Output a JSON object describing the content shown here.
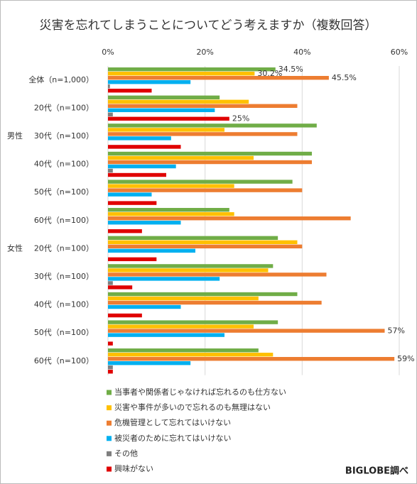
{
  "chart_data": {
    "type": "barh",
    "title": "災害を忘れてしまうことについてどう考えますか（複数回答）",
    "categories": [
      "全体（n=1,000）",
      "20代（n=100）",
      "30代（n=100）",
      "40代（n=100）",
      "50代（n=100）",
      "60代（n=100）",
      "20代（n=100）",
      "30代（n=100）",
      "40代（n=100）",
      "50代（n=100）",
      "60代（n=100）"
    ],
    "category_groups": [
      null,
      null,
      "男性",
      null,
      null,
      null,
      "女性",
      null,
      null,
      null,
      null
    ],
    "series": [
      {
        "name": "当事者や関係者じゃなければ忘れるのも仕方ない",
        "color": "#70ad47",
        "values": [
          34.5,
          23,
          43,
          42,
          38,
          25,
          35,
          34,
          39,
          35,
          31
        ],
        "value_labels": [
          "34.5%",
          null,
          null,
          null,
          null,
          null,
          null,
          null,
          null,
          null,
          null
        ]
      },
      {
        "name": "災害や事件が多いので忘れるのも無理はない",
        "color": "#ffc000",
        "values": [
          30.2,
          29,
          24,
          30,
          26,
          26,
          39,
          33,
          31,
          30,
          34
        ],
        "value_labels": [
          "30.2%",
          null,
          null,
          null,
          null,
          null,
          null,
          null,
          null,
          null,
          null
        ]
      },
      {
        "name": "危機管理として忘れてはいけない",
        "color": "#ed7d31",
        "values": [
          45.5,
          39,
          39,
          42,
          40,
          50,
          40,
          45,
          44,
          57,
          59
        ],
        "value_labels": [
          "45.5%",
          null,
          null,
          null,
          null,
          null,
          null,
          null,
          null,
          "57%",
          "59%"
        ]
      },
      {
        "name": "被災者のために忘れてはいけない",
        "color": "#00b0f0",
        "values": [
          17,
          22,
          13,
          14,
          9,
          15,
          18,
          23,
          15,
          24,
          17
        ]
      },
      {
        "name": "その他",
        "color": "#7f7f7f",
        "values": [
          0.4,
          1,
          0,
          1,
          0,
          0,
          0,
          1,
          0,
          0,
          1
        ]
      },
      {
        "name": "興味がない",
        "color": "#e00000",
        "values": [
          9,
          25,
          15,
          12,
          10,
          7,
          10,
          5,
          7,
          1,
          1
        ],
        "value_labels": [
          null,
          "25%",
          null,
          null,
          null,
          null,
          null,
          null,
          null,
          null,
          null
        ]
      }
    ],
    "xlim": [
      0,
      60
    ],
    "xticks": [
      {
        "value": 0,
        "label": "0%"
      },
      {
        "value": 20,
        "label": "20%"
      },
      {
        "value": 40,
        "label": "40%"
      },
      {
        "value": 60,
        "label": "60%"
      }
    ],
    "grid": true,
    "legend": "bottom",
    "source": "BIGLOBE調べ"
  }
}
